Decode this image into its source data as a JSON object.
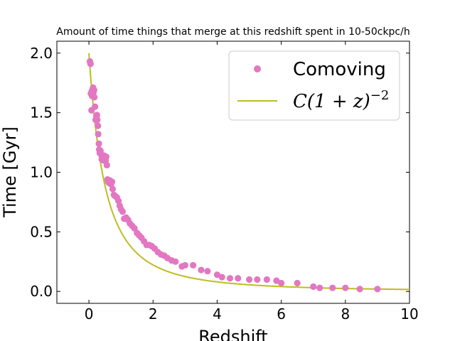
{
  "chart_data": {
    "type": "scatter",
    "title": "Amount of time things that merge at this redshift spent in 10-50ckpc/h",
    "xlabel": "Redshift",
    "ylabel": "Time [Gyr]",
    "xlim": [
      -1,
      10
    ],
    "ylim": [
      -0.1,
      2.1
    ],
    "xticks": [
      0,
      2,
      4,
      6,
      8,
      10
    ],
    "xtick_labels": [
      "0",
      "2",
      "4",
      "6",
      "8",
      "10"
    ],
    "yticks": [
      0.0,
      0.5,
      1.0,
      1.5,
      2.0
    ],
    "ytick_labels": [
      "0.0",
      "0.5",
      "1.0",
      "1.5",
      "2.0"
    ],
    "legend_position": "upper right",
    "grid": false,
    "series": [
      {
        "name": "Comoving",
        "kind": "scatter",
        "color": "#e377c2",
        "points": [
          [
            0.03,
            1.93
          ],
          [
            0.05,
            1.91
          ],
          [
            0.06,
            1.66
          ],
          [
            0.08,
            1.52
          ],
          [
            0.09,
            1.68
          ],
          [
            0.1,
            1.64
          ],
          [
            0.12,
            1.7
          ],
          [
            0.13,
            1.71
          ],
          [
            0.14,
            1.67
          ],
          [
            0.16,
            1.69
          ],
          [
            0.17,
            1.63
          ],
          [
            0.19,
            1.55
          ],
          [
            0.21,
            1.44
          ],
          [
            0.23,
            1.47
          ],
          [
            0.25,
            1.48
          ],
          [
            0.26,
            1.44
          ],
          [
            0.28,
            1.39
          ],
          [
            0.29,
            1.32
          ],
          [
            0.31,
            1.24
          ],
          [
            0.32,
            1.19
          ],
          [
            0.34,
            1.16
          ],
          [
            0.36,
            1.18
          ],
          [
            0.38,
            1.15
          ],
          [
            0.4,
            1.11
          ],
          [
            0.42,
            1.13
          ],
          [
            0.45,
            1.1
          ],
          [
            0.47,
            1.14
          ],
          [
            0.5,
            1.12
          ],
          [
            0.52,
            1.1
          ],
          [
            0.54,
            1.13
          ],
          [
            0.56,
            1.06
          ],
          [
            0.58,
            0.94
          ],
          [
            0.6,
            0.92
          ],
          [
            0.63,
            0.91
          ],
          [
            0.66,
            0.93
          ],
          [
            0.69,
            0.9
          ],
          [
            0.72,
            0.92
          ],
          [
            0.74,
            0.86
          ],
          [
            0.78,
            0.81
          ],
          [
            0.82,
            0.8
          ],
          [
            0.87,
            0.79
          ],
          [
            0.92,
            0.76
          ],
          [
            0.96,
            0.72
          ],
          [
            1.0,
            0.69
          ],
          [
            1.05,
            0.67
          ],
          [
            1.1,
            0.61
          ],
          [
            1.16,
            0.62
          ],
          [
            1.22,
            0.6
          ],
          [
            1.28,
            0.57
          ],
          [
            1.35,
            0.55
          ],
          [
            1.42,
            0.53
          ],
          [
            1.5,
            0.49
          ],
          [
            1.57,
            0.47
          ],
          [
            1.64,
            0.45
          ],
          [
            1.72,
            0.42
          ],
          [
            1.8,
            0.39
          ],
          [
            1.88,
            0.39
          ],
          [
            1.96,
            0.38
          ],
          [
            2.05,
            0.36
          ],
          [
            2.15,
            0.33
          ],
          [
            2.25,
            0.31
          ],
          [
            2.35,
            0.3
          ],
          [
            2.45,
            0.28
          ],
          [
            2.58,
            0.26
          ],
          [
            2.7,
            0.25
          ],
          [
            2.9,
            0.21
          ],
          [
            3.0,
            0.22
          ],
          [
            3.25,
            0.22
          ],
          [
            3.5,
            0.18
          ],
          [
            3.7,
            0.17
          ],
          [
            4.0,
            0.14
          ],
          [
            4.15,
            0.12
          ],
          [
            4.4,
            0.11
          ],
          [
            4.65,
            0.11
          ],
          [
            5.0,
            0.1
          ],
          [
            5.25,
            0.1
          ],
          [
            5.55,
            0.1
          ],
          [
            5.85,
            0.09
          ],
          [
            6.0,
            0.07
          ],
          [
            6.5,
            0.07
          ],
          [
            7.0,
            0.04
          ],
          [
            7.2,
            0.03
          ],
          [
            7.6,
            0.03
          ],
          [
            8.0,
            0.03
          ],
          [
            8.45,
            0.02
          ],
          [
            9.0,
            0.02
          ]
        ]
      },
      {
        "name": "C(1+z)^-2",
        "kind": "line",
        "color": "#bcbd22",
        "formula": "y = C / (1 + z)^2",
        "C": 2.0,
        "x_range": [
          0,
          10
        ]
      }
    ],
    "legend": [
      {
        "label": "Comoving",
        "marker": "circle",
        "color": "#e377c2"
      },
      {
        "label_prefix": "C(1 + z)",
        "label_exponent": "−2",
        "marker": "line",
        "color": "#bcbd22"
      }
    ]
  }
}
